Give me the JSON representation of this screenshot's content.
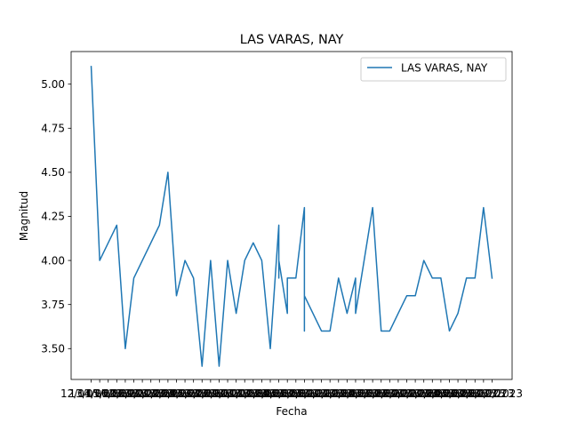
{
  "chart_data": {
    "type": "line",
    "title": "LAS VARAS, NAY",
    "xlabel": "Fecha",
    "ylabel": "Magnitud",
    "ylim": [
      3.325,
      5.185
    ],
    "y_ticks": [
      3.5,
      3.75,
      4.0,
      4.25,
      4.5,
      4.75,
      5.0
    ],
    "y_tick_labels": [
      "3.50",
      "3.75",
      "4.00",
      "4.25",
      "4.50",
      "4.75",
      "5.00"
    ],
    "x_tick_labels": [
      "12/01/2023",
      "13/01/2023",
      "14/01/2023",
      "15/01/2023",
      "16/01/2023",
      "17/01/2023",
      "18/01/2023",
      "19/01/2023",
      "20/01/2023",
      "21/01/2023",
      "22/01/2023",
      "23/01/2023",
      "24/01/2023",
      "25/01/2023",
      "26/01/2023",
      "27/01/2023",
      "28/01/2023",
      "29/01/2023",
      "30/01/2023",
      "31/01/2023",
      "01/02/2023",
      "02/02/2023",
      "03/02/2023",
      "04/02/2023",
      "05/02/2023",
      "06/02/2023",
      "07/02/2023",
      "08/02/2023",
      "09/02/2023",
      "10/02/2023",
      "11/02/2023",
      "12/02/2023",
      "13/02/2023",
      "14/02/2023",
      "15/02/2023",
      "16/02/2023",
      "17/02/2023",
      "18/02/2023",
      "19/02/2023",
      "20/02/2023",
      "21/02/2023",
      "22/02/2023",
      "23/02/2023",
      "24/02/2023",
      "25/02/2023",
      "26/02/2023",
      "27/02/2023",
      "28/02/2023"
    ],
    "grid": false,
    "legend_position": "top-right",
    "series": [
      {
        "name": "LAS VARAS, NAY",
        "color": "#1f77b4",
        "x": [
          0,
          1,
          3,
          4,
          5,
          8,
          9,
          10,
          11,
          12,
          13,
          14,
          15,
          16,
          17,
          18,
          19,
          20,
          21,
          22,
          22,
          22,
          23,
          23,
          24,
          25,
          25,
          25,
          25,
          26,
          27,
          28,
          29,
          30,
          31,
          31,
          32,
          33,
          34,
          35,
          36,
          37,
          38,
          39,
          40,
          41,
          42,
          43,
          44,
          45,
          46,
          47
        ],
        "y": [
          5.1,
          4.0,
          4.2,
          3.5,
          3.9,
          4.2,
          4.5,
          3.8,
          4.0,
          3.9,
          3.4,
          4.0,
          3.4,
          4.0,
          3.7,
          4.0,
          4.1,
          4.0,
          3.5,
          4.2,
          3.9,
          4.0,
          3.7,
          3.9,
          3.9,
          4.3,
          3.6,
          4.1,
          3.8,
          3.7,
          3.6,
          3.6,
          3.9,
          3.7,
          3.9,
          3.7,
          4.0,
          4.3,
          3.6,
          3.6,
          3.7,
          3.8,
          3.8,
          4.0,
          3.9,
          3.9,
          3.6,
          3.7,
          3.9,
          3.9,
          4.3,
          3.9
        ]
      }
    ]
  }
}
